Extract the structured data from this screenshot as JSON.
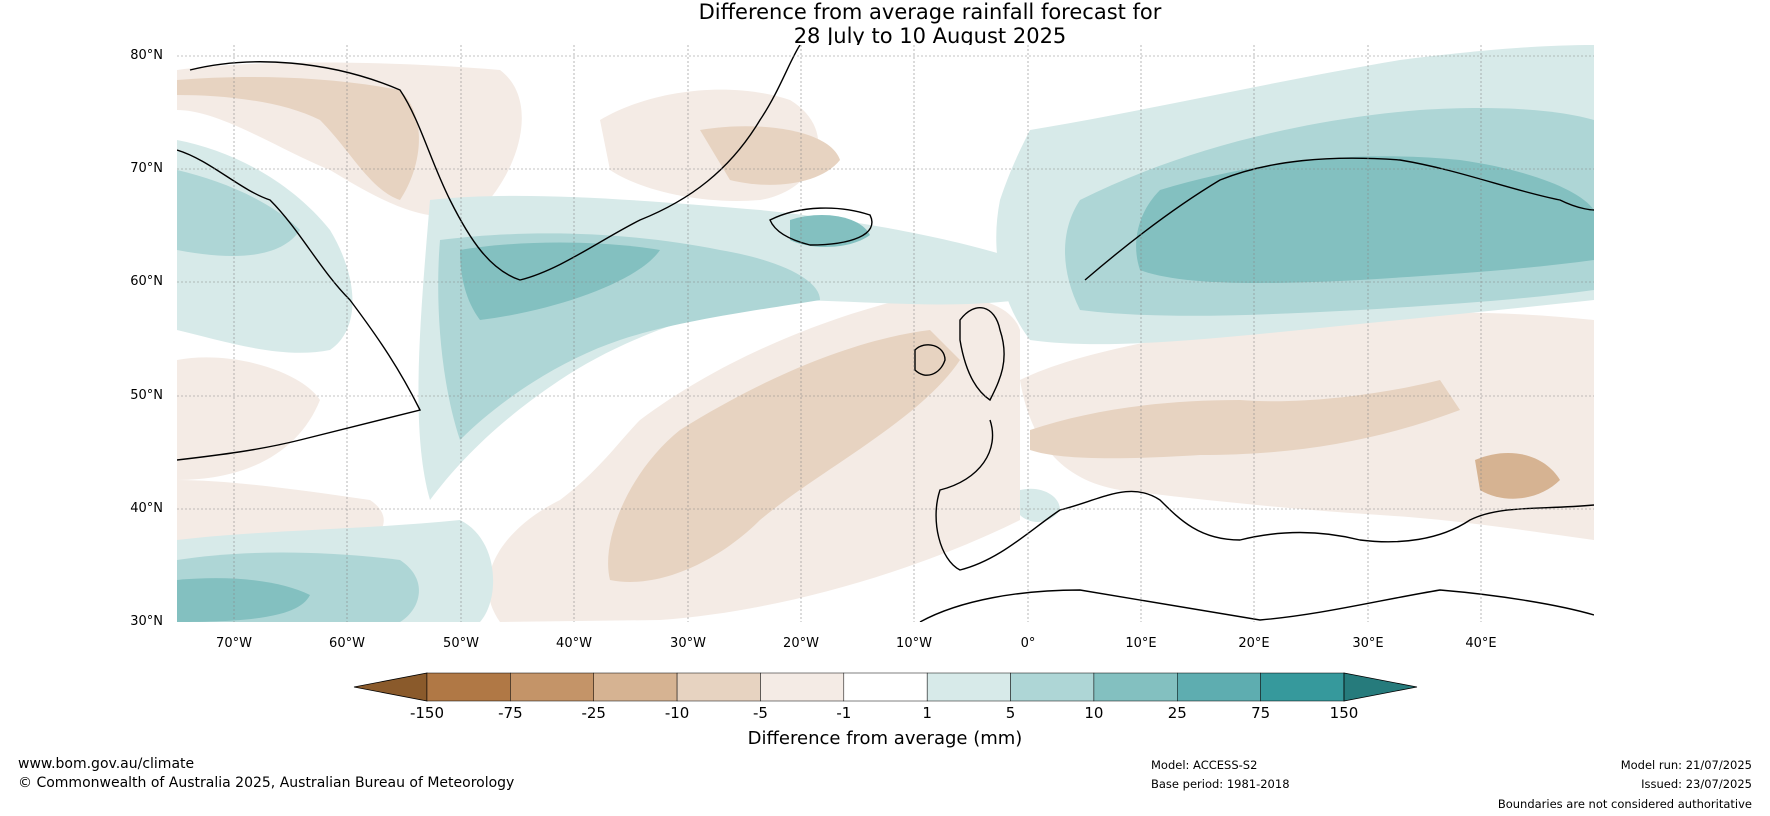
{
  "title": {
    "line1": "Difference from average rainfall forecast for",
    "line2": "28 July to 10 August 2025"
  },
  "map": {
    "latitudes": [
      "80°N",
      "70°N",
      "60°N",
      "50°N",
      "40°N",
      "30°N"
    ],
    "longitudes": [
      "70°W",
      "60°W",
      "50°W",
      "40°W",
      "30°W",
      "20°W",
      "10°W",
      "0°",
      "10°E",
      "20°E",
      "30°E",
      "40°E"
    ],
    "extent": {
      "lon": [
        -75,
        50
      ],
      "lat": [
        30,
        81
      ]
    }
  },
  "legend": {
    "title": "Difference from average (mm)",
    "bounds": [
      "-150",
      "-75",
      "-25",
      "-10",
      "-5",
      "-1",
      "1",
      "5",
      "10",
      "25",
      "75",
      "150"
    ],
    "colors": [
      "#8a5a2b",
      "#b07845",
      "#c49468",
      "#d6b392",
      "#e7d3c1",
      "#f4ebe5",
      "#ffffff",
      "#d7eae9",
      "#aed6d6",
      "#83c0c0",
      "#5eadb0",
      "#36999c",
      "#267b7c"
    ]
  },
  "footer": {
    "website": "www.bom.gov.au/climate",
    "copyright": "© Commonwealth of Australia 2025, Australian Bureau of Meteorology",
    "model": "Model: ACCESS-S2",
    "base_period": "Base period: 1981-2018",
    "model_run": "Model run: 21/07/2025",
    "issued": "Issued: 23/07/2025",
    "disclaimer": "Boundaries are not considered authoritative"
  }
}
